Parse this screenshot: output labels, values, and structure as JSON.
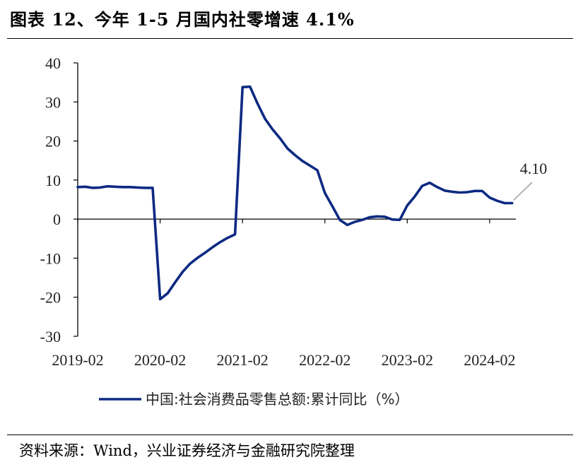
{
  "header": {
    "title": "图表 12、今年 1-5 月国内社零增速 4.1%"
  },
  "footer": {
    "source": "资料来源：Wind，兴业证券经济与金融研究院整理"
  },
  "colors": {
    "series": "#0d2a82",
    "callout": "#a6a6a6",
    "axis": "#000000"
  },
  "chart_data": {
    "type": "line",
    "title": "",
    "xlabel": "",
    "ylabel": "",
    "ylim": [
      -30,
      40
    ],
    "yticks": [
      "40",
      "30",
      "20",
      "10",
      "0",
      "-10",
      "-20",
      "-30"
    ],
    "yticks_values": [
      40,
      30,
      20,
      10,
      0,
      -10,
      -20,
      -30
    ],
    "xticks": [
      "2019-02",
      "2020-02",
      "2021-02",
      "2022-02",
      "2023-02",
      "2024-02"
    ],
    "grid": false,
    "legend": "bottom",
    "annotation": {
      "label": "4.10",
      "value": 4.1
    },
    "series": [
      {
        "name": "中国:社会消费品零售总额:累计同比（%）",
        "x": [
          "2019-02",
          "2019-03",
          "2019-04",
          "2019-05",
          "2019-06",
          "2019-07",
          "2019-08",
          "2019-09",
          "2019-10",
          "2019-11",
          "2019-12",
          "2020-02",
          "2020-03",
          "2020-04",
          "2020-05",
          "2020-06",
          "2020-07",
          "2020-08",
          "2020-09",
          "2020-10",
          "2020-11",
          "2020-12",
          "2021-02",
          "2021-03",
          "2021-04",
          "2021-05",
          "2021-06",
          "2021-07",
          "2021-08",
          "2021-09",
          "2021-10",
          "2021-11",
          "2021-12",
          "2022-02",
          "2022-03",
          "2022-04",
          "2022-05",
          "2022-06",
          "2022-07",
          "2022-08",
          "2022-09",
          "2022-10",
          "2022-11",
          "2022-12",
          "2023-02",
          "2023-03",
          "2023-04",
          "2023-05",
          "2023-06",
          "2023-07",
          "2023-08",
          "2023-09",
          "2023-10",
          "2023-11",
          "2023-12",
          "2024-02",
          "2024-03",
          "2024-04",
          "2024-05"
        ],
        "values": [
          8.2,
          8.3,
          8.0,
          8.1,
          8.4,
          8.3,
          8.2,
          8.2,
          8.1,
          8.0,
          8.0,
          -20.5,
          -19.0,
          -16.2,
          -13.5,
          -11.4,
          -9.9,
          -8.6,
          -7.2,
          -5.9,
          -4.8,
          -3.9,
          33.8,
          33.9,
          29.6,
          25.7,
          23.0,
          20.7,
          18.1,
          16.4,
          14.9,
          13.7,
          12.5,
          6.7,
          3.3,
          -0.2,
          -1.5,
          -0.7,
          -0.2,
          0.5,
          0.7,
          0.6,
          -0.1,
          -0.2,
          3.5,
          5.8,
          8.5,
          9.3,
          8.2,
          7.3,
          7.0,
          6.8,
          6.9,
          7.2,
          7.2,
          5.5,
          4.7,
          4.1,
          4.1
        ]
      }
    ]
  }
}
